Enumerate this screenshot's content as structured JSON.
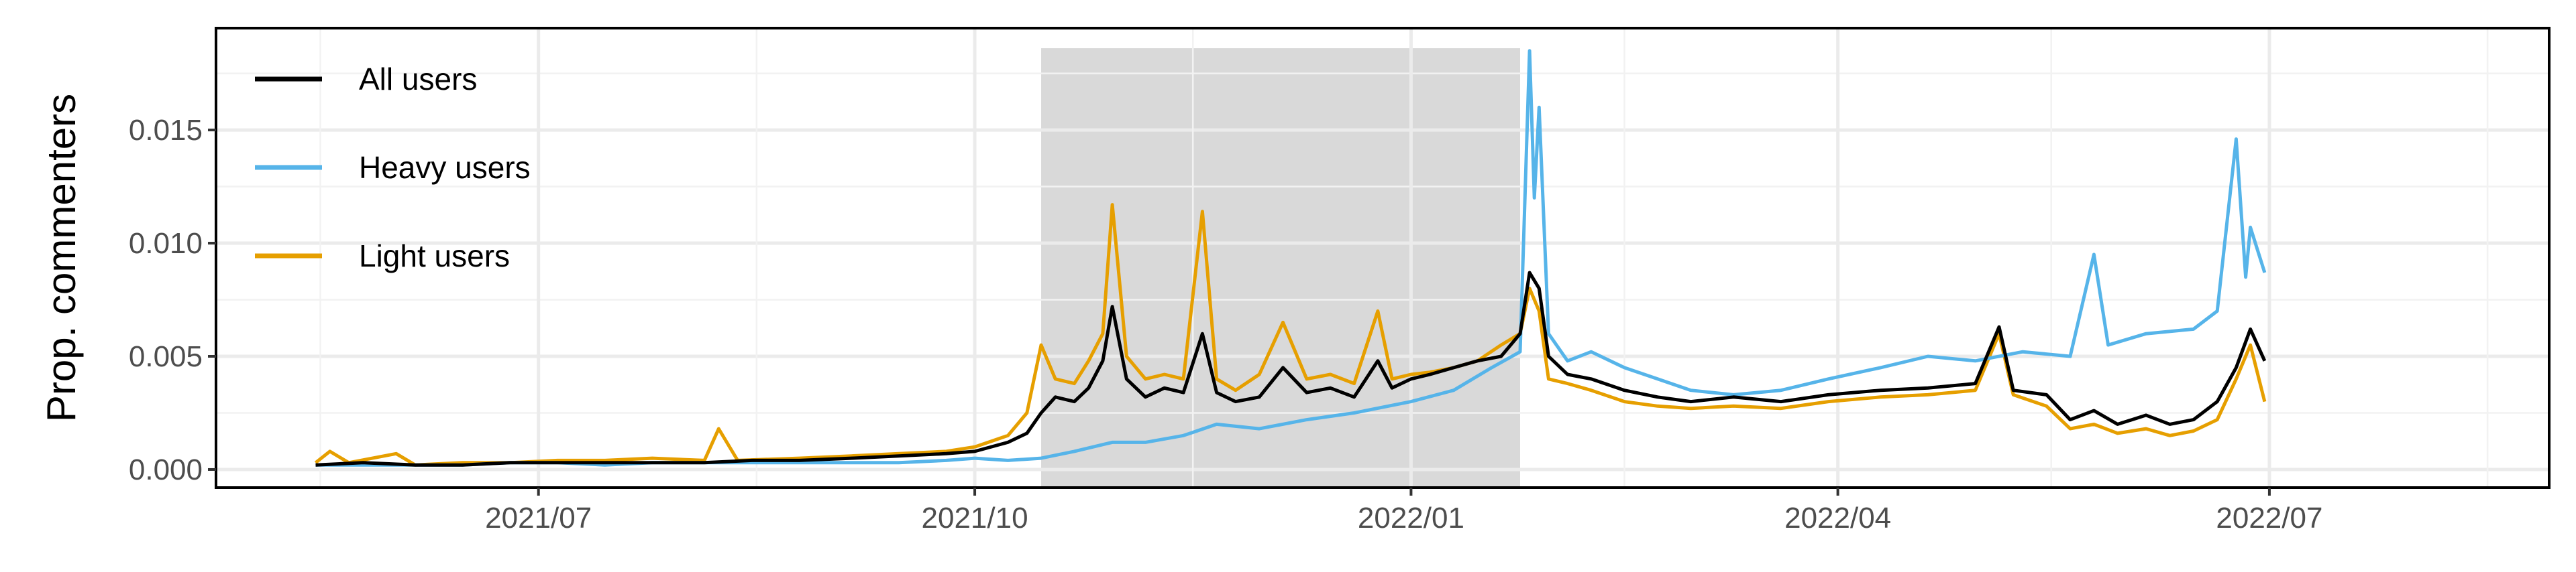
{
  "chart_data": {
    "type": "line",
    "title": "",
    "xlabel": "",
    "ylabel": "Prop. commenters",
    "x_ticks": [
      "2021/07",
      "2021/10",
      "2022/01",
      "2022/04",
      "2022/07"
    ],
    "y_ticks": [
      "0.000",
      "0.005",
      "0.010",
      "0.015"
    ],
    "xlim": [
      "2021-04-24",
      "2022-08-29"
    ],
    "ylim": [
      -0.0008,
      0.0195
    ],
    "grid": true,
    "legend_position": "top-left",
    "shaded_region": {
      "start": "2021-10-15",
      "end": "2022-01-24"
    },
    "series": [
      {
        "name": "All users",
        "color": "#000000",
        "points": [
          [
            "2021-05-15",
            0.0002
          ],
          [
            "2021-05-25",
            0.0003
          ],
          [
            "2021-06-05",
            0.0002
          ],
          [
            "2021-06-15",
            0.0002
          ],
          [
            "2021-06-25",
            0.0003
          ],
          [
            "2021-07-05",
            0.0003
          ],
          [
            "2021-07-15",
            0.0003
          ],
          [
            "2021-07-25",
            0.0003
          ],
          [
            "2021-08-05",
            0.0003
          ],
          [
            "2021-08-15",
            0.0004
          ],
          [
            "2021-08-25",
            0.0004
          ],
          [
            "2021-09-05",
            0.0005
          ],
          [
            "2021-09-15",
            0.0006
          ],
          [
            "2021-09-25",
            0.0007
          ],
          [
            "2021-10-01",
            0.0008
          ],
          [
            "2021-10-08",
            0.0012
          ],
          [
            "2021-10-12",
            0.0016
          ],
          [
            "2021-10-15",
            0.0025
          ],
          [
            "2021-10-18",
            0.0032
          ],
          [
            "2021-10-22",
            0.003
          ],
          [
            "2021-10-25",
            0.0036
          ],
          [
            "2021-10-28",
            0.0048
          ],
          [
            "2021-10-30",
            0.0072
          ],
          [
            "2021-11-02",
            0.004
          ],
          [
            "2021-11-06",
            0.0032
          ],
          [
            "2021-11-10",
            0.0036
          ],
          [
            "2021-11-14",
            0.0034
          ],
          [
            "2021-11-18",
            0.006
          ],
          [
            "2021-11-21",
            0.0034
          ],
          [
            "2021-11-25",
            0.003
          ],
          [
            "2021-11-30",
            0.0032
          ],
          [
            "2021-12-05",
            0.0045
          ],
          [
            "2021-12-10",
            0.0034
          ],
          [
            "2021-12-15",
            0.0036
          ],
          [
            "2021-12-20",
            0.0032
          ],
          [
            "2021-12-25",
            0.0048
          ],
          [
            "2021-12-28",
            0.0036
          ],
          [
            "2022-01-01",
            0.004
          ],
          [
            "2022-01-05",
            0.0042
          ],
          [
            "2022-01-10",
            0.0045
          ],
          [
            "2022-01-15",
            0.0048
          ],
          [
            "2022-01-20",
            0.005
          ],
          [
            "2022-01-24",
            0.006
          ],
          [
            "2022-01-26",
            0.0087
          ],
          [
            "2022-01-28",
            0.008
          ],
          [
            "2022-01-30",
            0.005
          ],
          [
            "2022-02-03",
            0.0042
          ],
          [
            "2022-02-08",
            0.004
          ],
          [
            "2022-02-15",
            0.0035
          ],
          [
            "2022-02-22",
            0.0032
          ],
          [
            "2022-03-01",
            0.003
          ],
          [
            "2022-03-10",
            0.0032
          ],
          [
            "2022-03-20",
            0.003
          ],
          [
            "2022-03-30",
            0.0033
          ],
          [
            "2022-04-10",
            0.0035
          ],
          [
            "2022-04-20",
            0.0036
          ],
          [
            "2022-04-30",
            0.0038
          ],
          [
            "2022-05-05",
            0.0063
          ],
          [
            "2022-05-08",
            0.0035
          ],
          [
            "2022-05-15",
            0.0033
          ],
          [
            "2022-05-20",
            0.0022
          ],
          [
            "2022-05-25",
            0.0026
          ],
          [
            "2022-05-30",
            0.002
          ],
          [
            "2022-06-05",
            0.0024
          ],
          [
            "2022-06-10",
            0.002
          ],
          [
            "2022-06-15",
            0.0022
          ],
          [
            "2022-06-20",
            0.003
          ],
          [
            "2022-06-24",
            0.0045
          ],
          [
            "2022-06-27",
            0.0062
          ],
          [
            "2022-06-30",
            0.0048
          ]
        ]
      },
      {
        "name": "Heavy users",
        "color": "#56B4E9",
        "points": [
          [
            "2021-05-15",
            0.0002
          ],
          [
            "2021-05-25",
            0.0002
          ],
          [
            "2021-06-05",
            0.0002
          ],
          [
            "2021-06-15",
            0.0002
          ],
          [
            "2021-06-25",
            0.0003
          ],
          [
            "2021-07-05",
            0.0003
          ],
          [
            "2021-07-15",
            0.0002
          ],
          [
            "2021-07-25",
            0.0003
          ],
          [
            "2021-08-05",
            0.0003
          ],
          [
            "2021-08-15",
            0.0003
          ],
          [
            "2021-08-25",
            0.0003
          ],
          [
            "2021-09-05",
            0.0003
          ],
          [
            "2021-09-15",
            0.0003
          ],
          [
            "2021-09-25",
            0.0004
          ],
          [
            "2021-10-01",
            0.0005
          ],
          [
            "2021-10-08",
            0.0004
          ],
          [
            "2021-10-15",
            0.0005
          ],
          [
            "2021-10-22",
            0.0008
          ],
          [
            "2021-10-30",
            0.0012
          ],
          [
            "2021-11-06",
            0.0012
          ],
          [
            "2021-11-14",
            0.0015
          ],
          [
            "2021-11-21",
            0.002
          ],
          [
            "2021-11-30",
            0.0018
          ],
          [
            "2021-12-10",
            0.0022
          ],
          [
            "2021-12-20",
            0.0025
          ],
          [
            "2022-01-01",
            0.003
          ],
          [
            "2022-01-10",
            0.0035
          ],
          [
            "2022-01-18",
            0.0045
          ],
          [
            "2022-01-24",
            0.0052
          ],
          [
            "2022-01-26",
            0.0185
          ],
          [
            "2022-01-27",
            0.012
          ],
          [
            "2022-01-28",
            0.016
          ],
          [
            "2022-01-30",
            0.006
          ],
          [
            "2022-02-03",
            0.0048
          ],
          [
            "2022-02-08",
            0.0052
          ],
          [
            "2022-02-15",
            0.0045
          ],
          [
            "2022-02-22",
            0.004
          ],
          [
            "2022-03-01",
            0.0035
          ],
          [
            "2022-03-10",
            0.0033
          ],
          [
            "2022-03-20",
            0.0035
          ],
          [
            "2022-03-30",
            0.004
          ],
          [
            "2022-04-10",
            0.0045
          ],
          [
            "2022-04-20",
            0.005
          ],
          [
            "2022-04-30",
            0.0048
          ],
          [
            "2022-05-10",
            0.0052
          ],
          [
            "2022-05-20",
            0.005
          ],
          [
            "2022-05-25",
            0.0095
          ],
          [
            "2022-05-28",
            0.0055
          ],
          [
            "2022-06-05",
            0.006
          ],
          [
            "2022-06-15",
            0.0062
          ],
          [
            "2022-06-20",
            0.007
          ],
          [
            "2022-06-24",
            0.0146
          ],
          [
            "2022-06-26",
            0.0085
          ],
          [
            "2022-06-27",
            0.0107
          ],
          [
            "2022-06-30",
            0.0087
          ]
        ]
      },
      {
        "name": "Light users",
        "color": "#E69F00",
        "points": [
          [
            "2021-05-15",
            0.0003
          ],
          [
            "2021-05-18",
            0.0008
          ],
          [
            "2021-05-22",
            0.0003
          ],
          [
            "2021-06-01",
            0.0007
          ],
          [
            "2021-06-05",
            0.0002
          ],
          [
            "2021-06-15",
            0.0003
          ],
          [
            "2021-06-25",
            0.0003
          ],
          [
            "2021-07-05",
            0.0004
          ],
          [
            "2021-07-15",
            0.0004
          ],
          [
            "2021-07-25",
            0.0005
          ],
          [
            "2021-08-05",
            0.0004
          ],
          [
            "2021-08-08",
            0.0018
          ],
          [
            "2021-08-12",
            0.0004
          ],
          [
            "2021-08-25",
            0.0005
          ],
          [
            "2021-09-05",
            0.0006
          ],
          [
            "2021-09-15",
            0.0007
          ],
          [
            "2021-09-25",
            0.0008
          ],
          [
            "2021-10-01",
            0.001
          ],
          [
            "2021-10-08",
            0.0015
          ],
          [
            "2021-10-12",
            0.0025
          ],
          [
            "2021-10-15",
            0.0055
          ],
          [
            "2021-10-18",
            0.004
          ],
          [
            "2021-10-22",
            0.0038
          ],
          [
            "2021-10-25",
            0.0048
          ],
          [
            "2021-10-28",
            0.006
          ],
          [
            "2021-10-30",
            0.0117
          ],
          [
            "2021-11-02",
            0.005
          ],
          [
            "2021-11-06",
            0.004
          ],
          [
            "2021-11-10",
            0.0042
          ],
          [
            "2021-11-14",
            0.004
          ],
          [
            "2021-11-18",
            0.0114
          ],
          [
            "2021-11-21",
            0.004
          ],
          [
            "2021-11-25",
            0.0035
          ],
          [
            "2021-11-30",
            0.0042
          ],
          [
            "2021-12-05",
            0.0065
          ],
          [
            "2021-12-10",
            0.004
          ],
          [
            "2021-12-15",
            0.0042
          ],
          [
            "2021-12-20",
            0.0038
          ],
          [
            "2021-12-25",
            0.007
          ],
          [
            "2021-12-28",
            0.004
          ],
          [
            "2022-01-01",
            0.0042
          ],
          [
            "2022-01-05",
            0.0043
          ],
          [
            "2022-01-10",
            0.0045
          ],
          [
            "2022-01-15",
            0.0048
          ],
          [
            "2022-01-20",
            0.0055
          ],
          [
            "2022-01-24",
            0.006
          ],
          [
            "2022-01-26",
            0.008
          ],
          [
            "2022-01-28",
            0.007
          ],
          [
            "2022-01-30",
            0.004
          ],
          [
            "2022-02-03",
            0.0038
          ],
          [
            "2022-02-08",
            0.0035
          ],
          [
            "2022-02-15",
            0.003
          ],
          [
            "2022-02-22",
            0.0028
          ],
          [
            "2022-03-01",
            0.0027
          ],
          [
            "2022-03-10",
            0.0028
          ],
          [
            "2022-03-20",
            0.0027
          ],
          [
            "2022-03-30",
            0.003
          ],
          [
            "2022-04-10",
            0.0032
          ],
          [
            "2022-04-20",
            0.0033
          ],
          [
            "2022-04-30",
            0.0035
          ],
          [
            "2022-05-05",
            0.006
          ],
          [
            "2022-05-08",
            0.0033
          ],
          [
            "2022-05-15",
            0.0028
          ],
          [
            "2022-05-20",
            0.0018
          ],
          [
            "2022-05-25",
            0.002
          ],
          [
            "2022-05-30",
            0.0016
          ],
          [
            "2022-06-05",
            0.0018
          ],
          [
            "2022-06-10",
            0.0015
          ],
          [
            "2022-06-15",
            0.0017
          ],
          [
            "2022-06-20",
            0.0022
          ],
          [
            "2022-06-24",
            0.004
          ],
          [
            "2022-06-27",
            0.0055
          ],
          [
            "2022-06-30",
            0.003
          ]
        ]
      }
    ]
  }
}
